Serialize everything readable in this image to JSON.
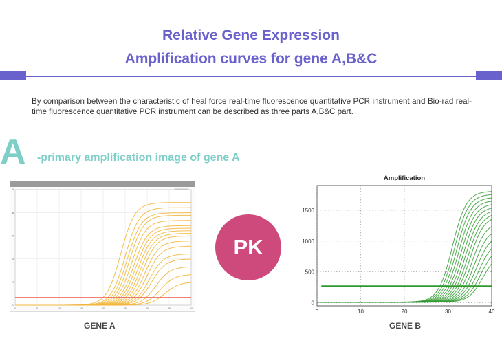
{
  "header": {
    "title_line1": "Relative Gene Expression",
    "title_line2": "Amplification curves for gene A,B&C",
    "accent_color": "#6a62cc"
  },
  "intro_text": "By comparison between the characteristic of heal force real-time fluorescence quantitative PCR instrument and Bio-rad real-time fluorescence quantitative PCR instrument can be described as three parts A,B&C part.",
  "section": {
    "letter": "A",
    "subtitle": "-primary amplification image of gene A",
    "accent_color": "#7ecfc8"
  },
  "pk_badge": {
    "label": "PK",
    "color": "#cf4a7c"
  },
  "captions": {
    "gene_a": "GENE A",
    "gene_b": "GENE B"
  },
  "chart_data": [
    {
      "type": "line",
      "title": "",
      "xlabel": "",
      "ylabel": "",
      "xlim": [
        0,
        40
      ],
      "ylim": [
        0,
        45
      ],
      "x_ticks": [
        0,
        5,
        10,
        15,
        20,
        25,
        30,
        35,
        40
      ],
      "y_ticks": [
        0,
        9,
        18,
        27,
        36,
        45
      ],
      "grid": true,
      "line_color": "#f2b73a",
      "threshold": {
        "value": 3,
        "color": "#e8574a"
      },
      "series_ct": [
        24,
        25,
        25.5,
        26,
        26.5,
        27,
        27.5,
        28,
        28.5,
        29,
        29.5,
        30,
        30.5,
        31,
        32,
        33,
        34
      ],
      "series_plateau": [
        40,
        38,
        36,
        35,
        33,
        31,
        30,
        29,
        28,
        27,
        25,
        23,
        20,
        18,
        15,
        12,
        9
      ]
    },
    {
      "type": "line",
      "title": "Amplification",
      "xlabel": "",
      "ylabel": "",
      "xlim": [
        0,
        40
      ],
      "ylim": [
        -50,
        1900
      ],
      "x_ticks": [
        0,
        10,
        20,
        30,
        40
      ],
      "y_ticks": [
        0,
        500,
        1000,
        1500
      ],
      "grid": true,
      "line_color": "#2e9a2e",
      "threshold": {
        "value": 270,
        "color": "#2e9a2e"
      },
      "series_ct": [
        31,
        31.5,
        32,
        32.5,
        33,
        33.5,
        34,
        34.5,
        35,
        35.5,
        36,
        36.5,
        37,
        37.5,
        38
      ],
      "series_plateau": [
        1800,
        1750,
        1700,
        1650,
        1600,
        1550,
        1500,
        1450,
        1400,
        1300,
        1200,
        1100,
        1000,
        900,
        800
      ]
    }
  ]
}
